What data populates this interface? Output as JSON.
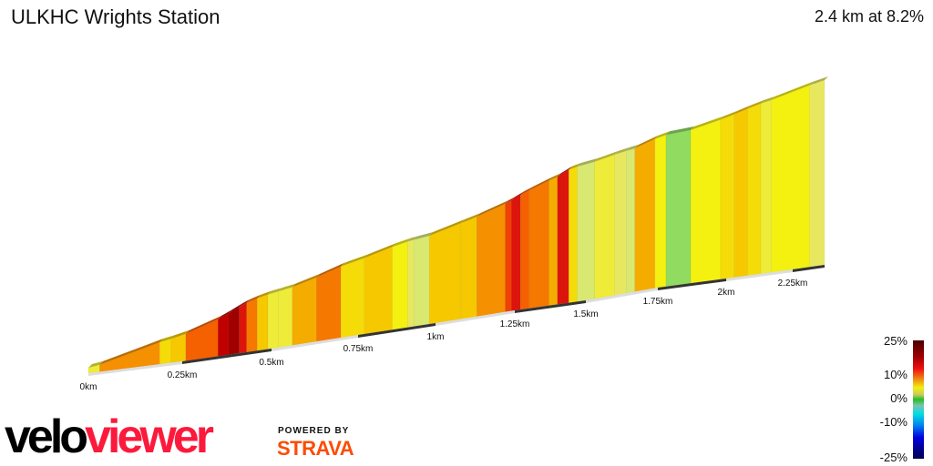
{
  "header": {
    "title": "ULKHC Wrights Station",
    "summary": "2.4 km at 8.2%"
  },
  "chart_data": {
    "type": "area",
    "title": "ULKHC Wrights Station",
    "xlabel": "",
    "ylabel": "",
    "x_ticks": [
      "0km",
      "0.25km",
      "0.5km",
      "0.75km",
      "1km",
      "1.25km",
      "1.5km",
      "1.75km",
      "2km",
      "2.25km"
    ],
    "x_tick_values": [
      0,
      0.25,
      0.5,
      0.75,
      1,
      1.25,
      1.5,
      1.75,
      2,
      2.25
    ],
    "xlim": [
      0,
      2.4
    ],
    "segments_km_grade": [
      [
        0.0,
        0.03,
        6
      ],
      [
        0.03,
        0.19,
        11
      ],
      [
        0.19,
        0.22,
        8
      ],
      [
        0.22,
        0.26,
        9
      ],
      [
        0.26,
        0.35,
        13
      ],
      [
        0.35,
        0.38,
        18
      ],
      [
        0.38,
        0.41,
        20
      ],
      [
        0.41,
        0.43,
        16
      ],
      [
        0.43,
        0.46,
        12
      ],
      [
        0.46,
        0.49,
        9
      ],
      [
        0.49,
        0.52,
        6
      ],
      [
        0.52,
        0.56,
        6
      ],
      [
        0.56,
        0.63,
        10
      ],
      [
        0.63,
        0.7,
        12
      ],
      [
        0.7,
        0.77,
        8
      ],
      [
        0.77,
        0.86,
        9
      ],
      [
        0.86,
        0.91,
        7
      ],
      [
        0.91,
        0.93,
        5
      ],
      [
        0.93,
        0.98,
        4
      ],
      [
        0.98,
        1.08,
        9
      ],
      [
        1.08,
        1.13,
        9
      ],
      [
        1.13,
        1.22,
        11
      ],
      [
        1.22,
        1.24,
        14
      ],
      [
        1.24,
        1.27,
        16
      ],
      [
        1.27,
        1.3,
        13
      ],
      [
        1.3,
        1.37,
        12
      ],
      [
        1.37,
        1.4,
        10
      ],
      [
        1.4,
        1.44,
        16
      ],
      [
        1.44,
        1.47,
        8
      ],
      [
        1.47,
        1.53,
        4
      ],
      [
        1.53,
        1.6,
        6
      ],
      [
        1.6,
        1.64,
        5
      ],
      [
        1.64,
        1.67,
        4
      ],
      [
        1.67,
        1.74,
        10
      ],
      [
        1.74,
        1.78,
        7
      ],
      [
        1.78,
        1.87,
        2
      ],
      [
        1.87,
        1.98,
        7
      ],
      [
        1.98,
        2.03,
        8
      ],
      [
        2.03,
        2.08,
        9
      ],
      [
        2.08,
        2.13,
        8
      ],
      [
        2.13,
        2.17,
        6
      ],
      [
        2.17,
        2.33,
        7
      ],
      [
        2.33,
        2.4,
        5
      ]
    ],
    "legend": {
      "labels": [
        "25%",
        "10%",
        "0%",
        "-10%",
        "-25%"
      ],
      "type": "gradient color scale"
    }
  },
  "branding": {
    "logo_part1": "velo",
    "logo_part2": "viewer",
    "powered_by": "POWERED BY",
    "strava": "STRAVA"
  }
}
